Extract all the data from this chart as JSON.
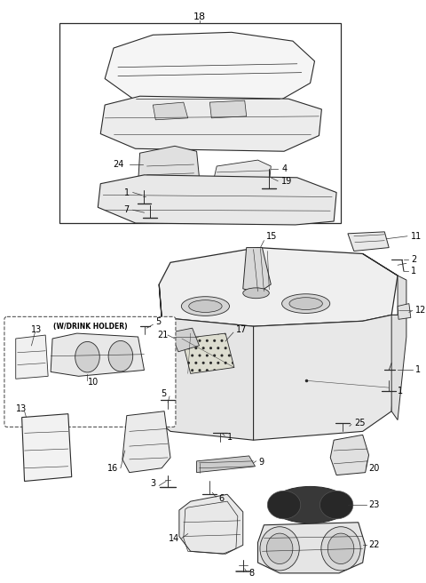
{
  "bg_color": "#ffffff",
  "line_color": "#2a2a2a",
  "fig_w": 4.8,
  "fig_h": 6.56,
  "dpi": 100
}
